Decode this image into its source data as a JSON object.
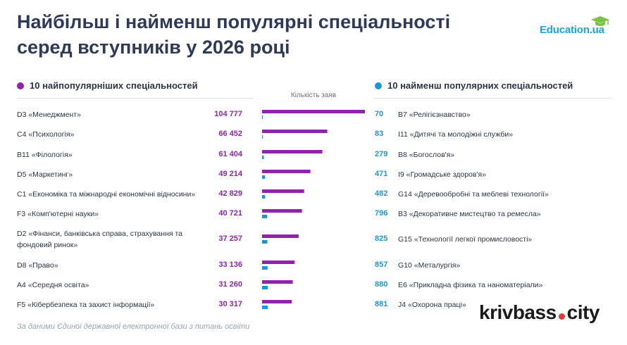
{
  "title_line1": "Найбільш і найменш популярні спеціальності",
  "title_line2": "серед вступників у 2026 році",
  "logo": {
    "text": "Education.ua",
    "icon": "graduation-cap-icon"
  },
  "left_header": "10 найпопулярніших спеціальностей",
  "right_header": "10 найменш популярних спеціальностей",
  "source_note": "За даними Єдиної державної електронної бази з питань освіти",
  "brand": {
    "left": "krivbass",
    "right": "city"
  },
  "colors": {
    "most": "#8e24aa",
    "least": "#1e95d6",
    "title": "#2e3a57"
  },
  "chart_data": {
    "type": "bar",
    "xlabel": "Кількість заяв",
    "series": [
      {
        "name": "10 найпопулярніших спеціальностей",
        "categories": [
          "D3 «Менеджмент»",
          "C4 «Психологія»",
          "B11 «Філологія»",
          "D5 «Маркетинг»",
          "C1 «Економіка та міжнародні економічні відносини»",
          "F3 «Комп'ютерні науки»",
          "D2 «Фінанси, банківська справа, страхування та фондовий ринок»",
          "D8 «Право»",
          "A4 «Середня освіта»",
          "F5 «Кібербезпека та захист інформації»"
        ],
        "values": [
          104777,
          66452,
          61404,
          49214,
          42829,
          40721,
          37257,
          33136,
          31260,
          30317
        ],
        "labels": [
          "104 777",
          "66 452",
          "61 404",
          "49 214",
          "42 829",
          "40 721",
          "37 257",
          "33 136",
          "31 260",
          "30 317"
        ]
      },
      {
        "name": "10 найменш популярних спеціальностей",
        "categories": [
          "B7 «Релігієзнавство»",
          "I11 «Дитячі та молодіжні служби»",
          "B8 «Богослов'я»",
          "I9 «Громадське здоров'я»",
          "G14 «Деревообробні та меблеві технології»",
          "B3 «Декоративне мистецтво та ремесла»",
          "G15 «Технології легкої промисловості»",
          "G10 «Металургія»",
          "E6 «Прикладна фізика та наноматеріали»",
          "J4 «Охорона праці»"
        ],
        "values": [
          70,
          83,
          279,
          471,
          482,
          796,
          825,
          857,
          880,
          881
        ],
        "labels": [
          "70",
          "83",
          "279",
          "471",
          "482",
          "796",
          "825",
          "857",
          "880",
          "881"
        ]
      }
    ]
  }
}
